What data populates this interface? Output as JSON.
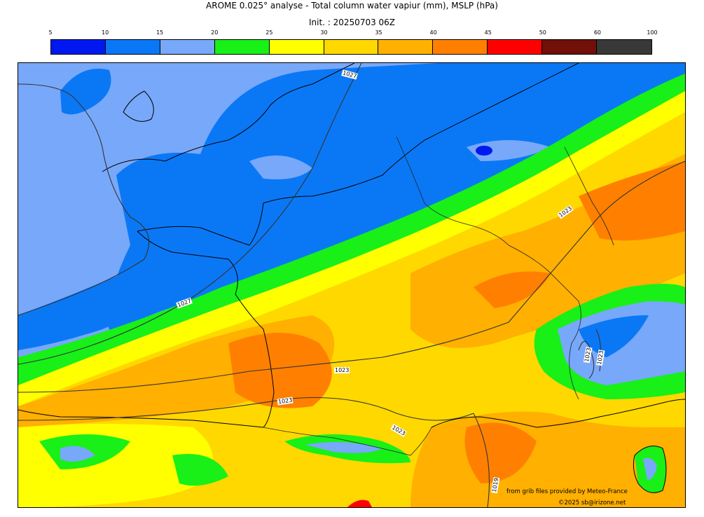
{
  "title": "AROME 0.025° analyse - Total column water vapiur (mm), MSLP (hPa)",
  "init": "Init. : 20250703 06Z",
  "colorbar": {
    "ticks": [
      "5",
      "10",
      "15",
      "20",
      "25",
      "30",
      "35",
      "40",
      "45",
      "50",
      "60",
      "100"
    ],
    "colors": [
      "#0018f0",
      "#0a78f5",
      "#78a8fa",
      "#18f018",
      "#ffff00",
      "#ffd800",
      "#ffb000",
      "#ff8000",
      "#ff0000",
      "#701008",
      "#383838"
    ]
  },
  "isobars": [
    "1027",
    "1027",
    "1023",
    "1023",
    "1023",
    "1023",
    "1023",
    "1023",
    "1019",
    "1019"
  ],
  "credits": {
    "source": "from grib files provided by Meteo-France",
    "copyright": "©2025 sb@irizone.net"
  }
}
